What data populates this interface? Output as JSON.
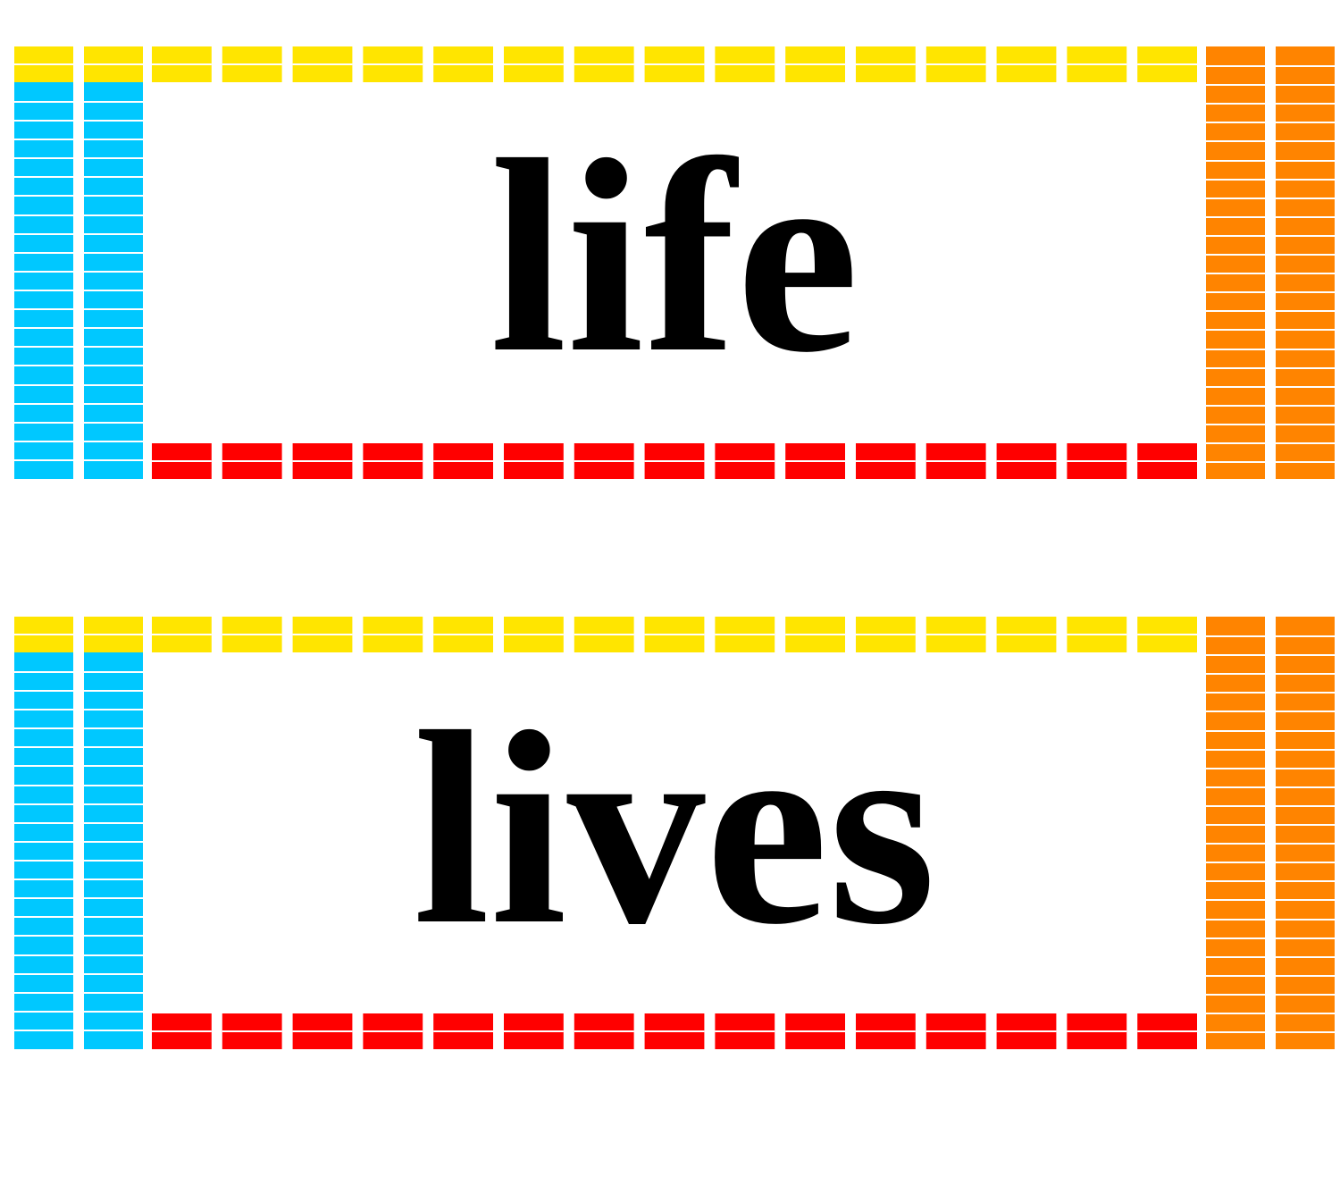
{
  "cards": [
    {
      "word": "life"
    },
    {
      "word": "lives"
    }
  ],
  "colors": {
    "top_border": "#FFE500",
    "bottom_border": "#FF0000",
    "left_border": "#00C8FF",
    "right_border": "#FF8400",
    "separator": "#ffffff",
    "text": "#000000",
    "background": "#ffffff"
  }
}
